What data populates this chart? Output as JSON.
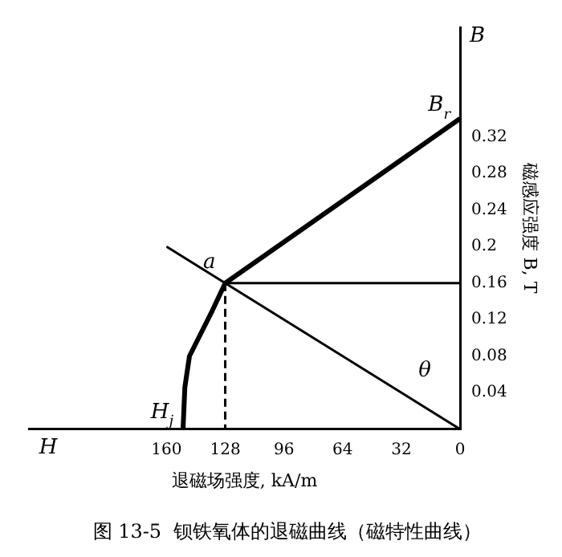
{
  "chart_data": {
    "type": "line",
    "title": "图 13-5  钡铁氧体的退磁曲线（磁特性曲线）",
    "xlabel": "退磁场强度, kA/m",
    "ylabel": "磁感应强度 B, T",
    "xlim": [
      235,
      0
    ],
    "xticks": [
      160,
      128,
      96,
      64,
      32,
      0
    ],
    "ylim": [
      0,
      0.44
    ],
    "yticks": [
      0.04,
      0.08,
      0.12,
      0.16,
      0.2,
      0.24,
      0.28,
      0.32
    ],
    "grid": false,
    "legend": false,
    "marker": "none",
    "series": [
      {
        "color": "#000000",
        "x": [
          151,
          150,
          147.5,
          135,
          128,
          0
        ],
        "values": [
          0,
          0.046,
          0.08,
          0.13,
          0.16,
          0.34
        ],
        "line_style": "solid"
      },
      {
        "color": "#000000",
        "x": [
          0,
          160
        ],
        "values": [
          0,
          0.2
        ],
        "line_style": "solid"
      },
      {
        "color": "#000000",
        "x": [
          128,
          0
        ],
        "values": [
          0.16,
          0.16
        ],
        "line_style": "solid"
      },
      {
        "color": "#000000",
        "x": [
          128,
          128
        ],
        "values": [
          0.16,
          0
        ],
        "line_style": "dashed"
      }
    ],
    "annotations": [
      {
        "text": "a",
        "x": 128,
        "y": 0.16
      },
      {
        "text": "B$_{r}$",
        "x": 0,
        "y": 0.34
      },
      {
        "text": "H$_{j}$",
        "x": 151,
        "y": 0
      },
      "θ",
      "H",
      "B"
    ]
  }
}
